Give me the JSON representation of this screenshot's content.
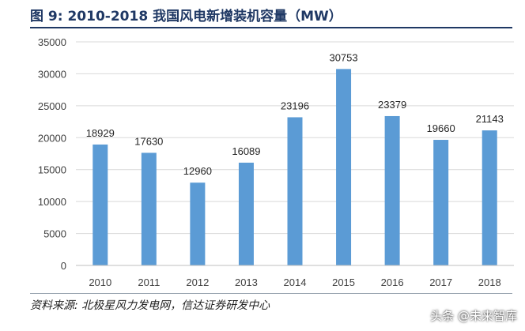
{
  "figure": {
    "title": "图 9:  2010-2018 我国风电新增装机容量（MW）",
    "source": "资料来源: 北极星风力发电网，信达证券研发中心",
    "watermark": "头条 @未来智库"
  },
  "colors": {
    "bar": "#5b9bd5",
    "title": "#1f3864",
    "grid": "#d9d9d9",
    "axis": "#bfbfbf",
    "text": "#404040"
  },
  "chart_data": {
    "type": "bar",
    "categories": [
      "2010",
      "2011",
      "2012",
      "2013",
      "2014",
      "2015",
      "2016",
      "2017",
      "2018"
    ],
    "values": [
      18929,
      17630,
      12960,
      16089,
      23196,
      30753,
      23379,
      19660,
      21143
    ],
    "data_labels": [
      "18929",
      "17630",
      "12960",
      "16089",
      "23196",
      "30753",
      "23379",
      "19660",
      "21143"
    ],
    "ylim": [
      0,
      35000
    ],
    "yticks": [
      0,
      5000,
      10000,
      15000,
      20000,
      25000,
      30000,
      35000
    ],
    "ytick_labels": [
      "0",
      "5000",
      "10000",
      "15000",
      "20000",
      "25000",
      "30000",
      "35000"
    ],
    "grid": true,
    "legend": "none"
  }
}
